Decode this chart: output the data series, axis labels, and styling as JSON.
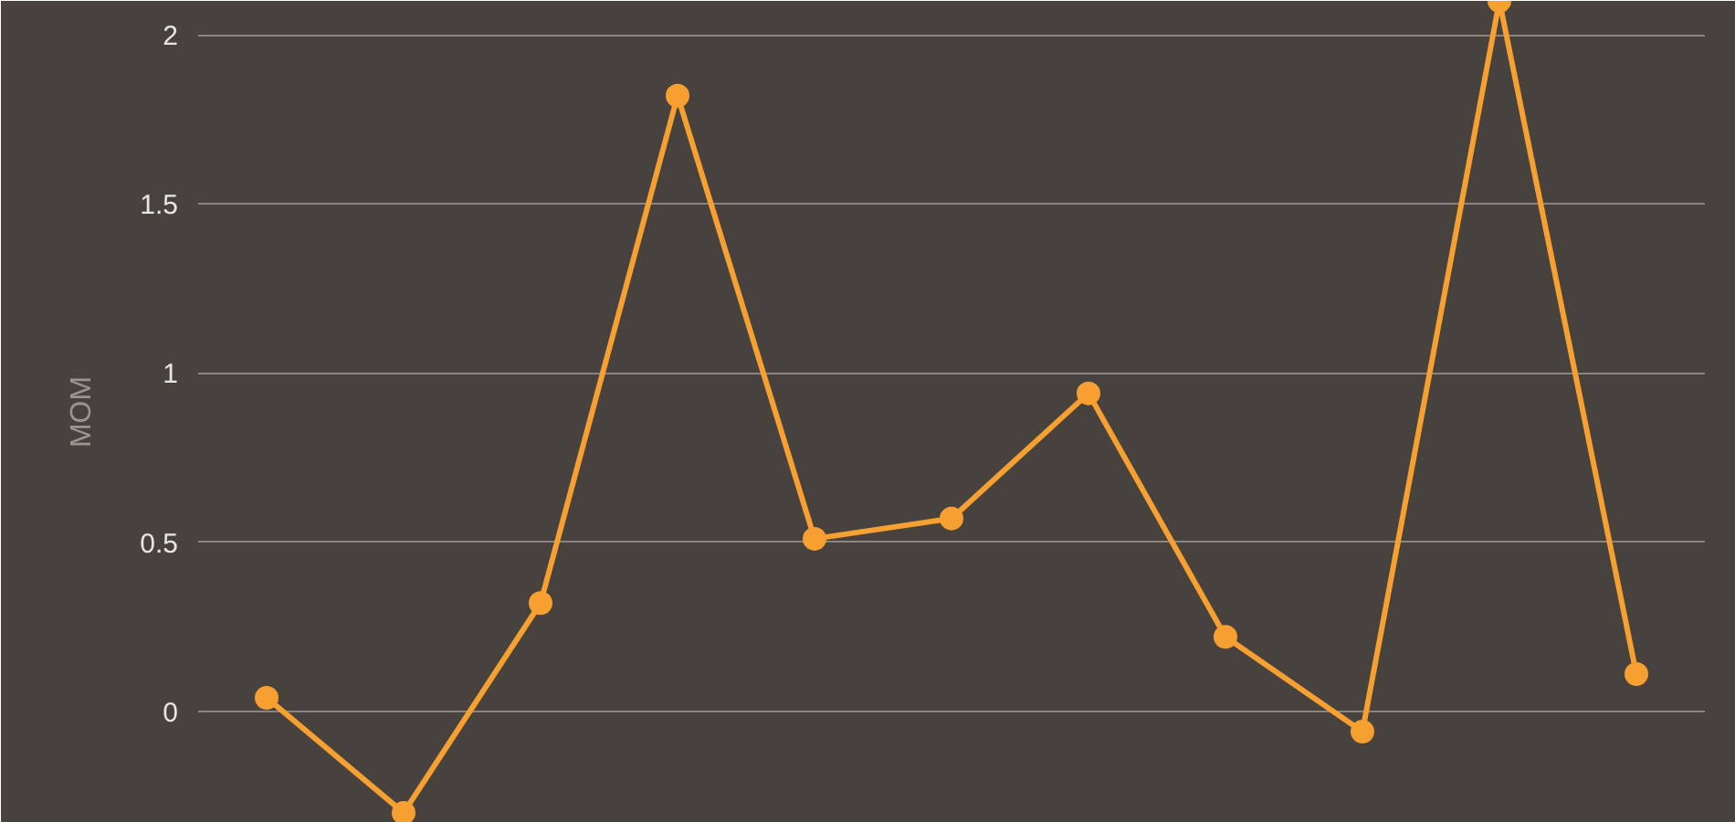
{
  "chart_data": {
    "type": "line",
    "ylabel": "MOM",
    "categories": [
      null,
      null,
      null,
      null,
      null,
      null,
      null,
      null,
      null,
      null,
      null
    ],
    "series": [
      {
        "color": "#f5a031",
        "values": [
          0.04,
          -0.3,
          0.32,
          1.82,
          0.51,
          0.57,
          0.94,
          0.22,
          -0.06,
          2.1,
          0.11
        ]
      }
    ],
    "ylim": [
      -0.33,
      2.1
    ],
    "yticks": [
      0,
      0.5,
      1,
      1.5,
      2
    ],
    "grid": "y",
    "tick_labels": "y",
    "marker": "circle",
    "line_style": "solid"
  }
}
